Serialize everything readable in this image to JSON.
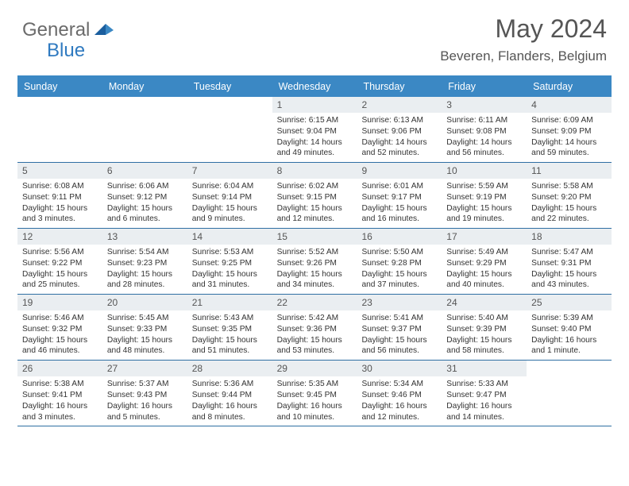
{
  "logo": {
    "word1": "General",
    "word2": "Blue"
  },
  "title": "May 2024",
  "location": "Beveren, Flanders, Belgium",
  "colors": {
    "header_bg": "#3b88c4",
    "header_text": "#ffffff",
    "daynum_bg": "#eaeef1",
    "border": "#2f6fa3",
    "title_text": "#555555",
    "body_text": "#333333",
    "logo_gray": "#6b6b6b",
    "logo_blue": "#2f7ac0"
  },
  "day_names": [
    "Sunday",
    "Monday",
    "Tuesday",
    "Wednesday",
    "Thursday",
    "Friday",
    "Saturday"
  ],
  "weeks": [
    [
      {
        "n": "",
        "sr": "",
        "ss": "",
        "dl": ""
      },
      {
        "n": "",
        "sr": "",
        "ss": "",
        "dl": ""
      },
      {
        "n": "",
        "sr": "",
        "ss": "",
        "dl": ""
      },
      {
        "n": "1",
        "sr": "Sunrise: 6:15 AM",
        "ss": "Sunset: 9:04 PM",
        "dl": "Daylight: 14 hours and 49 minutes."
      },
      {
        "n": "2",
        "sr": "Sunrise: 6:13 AM",
        "ss": "Sunset: 9:06 PM",
        "dl": "Daylight: 14 hours and 52 minutes."
      },
      {
        "n": "3",
        "sr": "Sunrise: 6:11 AM",
        "ss": "Sunset: 9:08 PM",
        "dl": "Daylight: 14 hours and 56 minutes."
      },
      {
        "n": "4",
        "sr": "Sunrise: 6:09 AM",
        "ss": "Sunset: 9:09 PM",
        "dl": "Daylight: 14 hours and 59 minutes."
      }
    ],
    [
      {
        "n": "5",
        "sr": "Sunrise: 6:08 AM",
        "ss": "Sunset: 9:11 PM",
        "dl": "Daylight: 15 hours and 3 minutes."
      },
      {
        "n": "6",
        "sr": "Sunrise: 6:06 AM",
        "ss": "Sunset: 9:12 PM",
        "dl": "Daylight: 15 hours and 6 minutes."
      },
      {
        "n": "7",
        "sr": "Sunrise: 6:04 AM",
        "ss": "Sunset: 9:14 PM",
        "dl": "Daylight: 15 hours and 9 minutes."
      },
      {
        "n": "8",
        "sr": "Sunrise: 6:02 AM",
        "ss": "Sunset: 9:15 PM",
        "dl": "Daylight: 15 hours and 12 minutes."
      },
      {
        "n": "9",
        "sr": "Sunrise: 6:01 AM",
        "ss": "Sunset: 9:17 PM",
        "dl": "Daylight: 15 hours and 16 minutes."
      },
      {
        "n": "10",
        "sr": "Sunrise: 5:59 AM",
        "ss": "Sunset: 9:19 PM",
        "dl": "Daylight: 15 hours and 19 minutes."
      },
      {
        "n": "11",
        "sr": "Sunrise: 5:58 AM",
        "ss": "Sunset: 9:20 PM",
        "dl": "Daylight: 15 hours and 22 minutes."
      }
    ],
    [
      {
        "n": "12",
        "sr": "Sunrise: 5:56 AM",
        "ss": "Sunset: 9:22 PM",
        "dl": "Daylight: 15 hours and 25 minutes."
      },
      {
        "n": "13",
        "sr": "Sunrise: 5:54 AM",
        "ss": "Sunset: 9:23 PM",
        "dl": "Daylight: 15 hours and 28 minutes."
      },
      {
        "n": "14",
        "sr": "Sunrise: 5:53 AM",
        "ss": "Sunset: 9:25 PM",
        "dl": "Daylight: 15 hours and 31 minutes."
      },
      {
        "n": "15",
        "sr": "Sunrise: 5:52 AM",
        "ss": "Sunset: 9:26 PM",
        "dl": "Daylight: 15 hours and 34 minutes."
      },
      {
        "n": "16",
        "sr": "Sunrise: 5:50 AM",
        "ss": "Sunset: 9:28 PM",
        "dl": "Daylight: 15 hours and 37 minutes."
      },
      {
        "n": "17",
        "sr": "Sunrise: 5:49 AM",
        "ss": "Sunset: 9:29 PM",
        "dl": "Daylight: 15 hours and 40 minutes."
      },
      {
        "n": "18",
        "sr": "Sunrise: 5:47 AM",
        "ss": "Sunset: 9:31 PM",
        "dl": "Daylight: 15 hours and 43 minutes."
      }
    ],
    [
      {
        "n": "19",
        "sr": "Sunrise: 5:46 AM",
        "ss": "Sunset: 9:32 PM",
        "dl": "Daylight: 15 hours and 46 minutes."
      },
      {
        "n": "20",
        "sr": "Sunrise: 5:45 AM",
        "ss": "Sunset: 9:33 PM",
        "dl": "Daylight: 15 hours and 48 minutes."
      },
      {
        "n": "21",
        "sr": "Sunrise: 5:43 AM",
        "ss": "Sunset: 9:35 PM",
        "dl": "Daylight: 15 hours and 51 minutes."
      },
      {
        "n": "22",
        "sr": "Sunrise: 5:42 AM",
        "ss": "Sunset: 9:36 PM",
        "dl": "Daylight: 15 hours and 53 minutes."
      },
      {
        "n": "23",
        "sr": "Sunrise: 5:41 AM",
        "ss": "Sunset: 9:37 PM",
        "dl": "Daylight: 15 hours and 56 minutes."
      },
      {
        "n": "24",
        "sr": "Sunrise: 5:40 AM",
        "ss": "Sunset: 9:39 PM",
        "dl": "Daylight: 15 hours and 58 minutes."
      },
      {
        "n": "25",
        "sr": "Sunrise: 5:39 AM",
        "ss": "Sunset: 9:40 PM",
        "dl": "Daylight: 16 hours and 1 minute."
      }
    ],
    [
      {
        "n": "26",
        "sr": "Sunrise: 5:38 AM",
        "ss": "Sunset: 9:41 PM",
        "dl": "Daylight: 16 hours and 3 minutes."
      },
      {
        "n": "27",
        "sr": "Sunrise: 5:37 AM",
        "ss": "Sunset: 9:43 PM",
        "dl": "Daylight: 16 hours and 5 minutes."
      },
      {
        "n": "28",
        "sr": "Sunrise: 5:36 AM",
        "ss": "Sunset: 9:44 PM",
        "dl": "Daylight: 16 hours and 8 minutes."
      },
      {
        "n": "29",
        "sr": "Sunrise: 5:35 AM",
        "ss": "Sunset: 9:45 PM",
        "dl": "Daylight: 16 hours and 10 minutes."
      },
      {
        "n": "30",
        "sr": "Sunrise: 5:34 AM",
        "ss": "Sunset: 9:46 PM",
        "dl": "Daylight: 16 hours and 12 minutes."
      },
      {
        "n": "31",
        "sr": "Sunrise: 5:33 AM",
        "ss": "Sunset: 9:47 PM",
        "dl": "Daylight: 16 hours and 14 minutes."
      },
      {
        "n": "",
        "sr": "",
        "ss": "",
        "dl": ""
      }
    ]
  ]
}
